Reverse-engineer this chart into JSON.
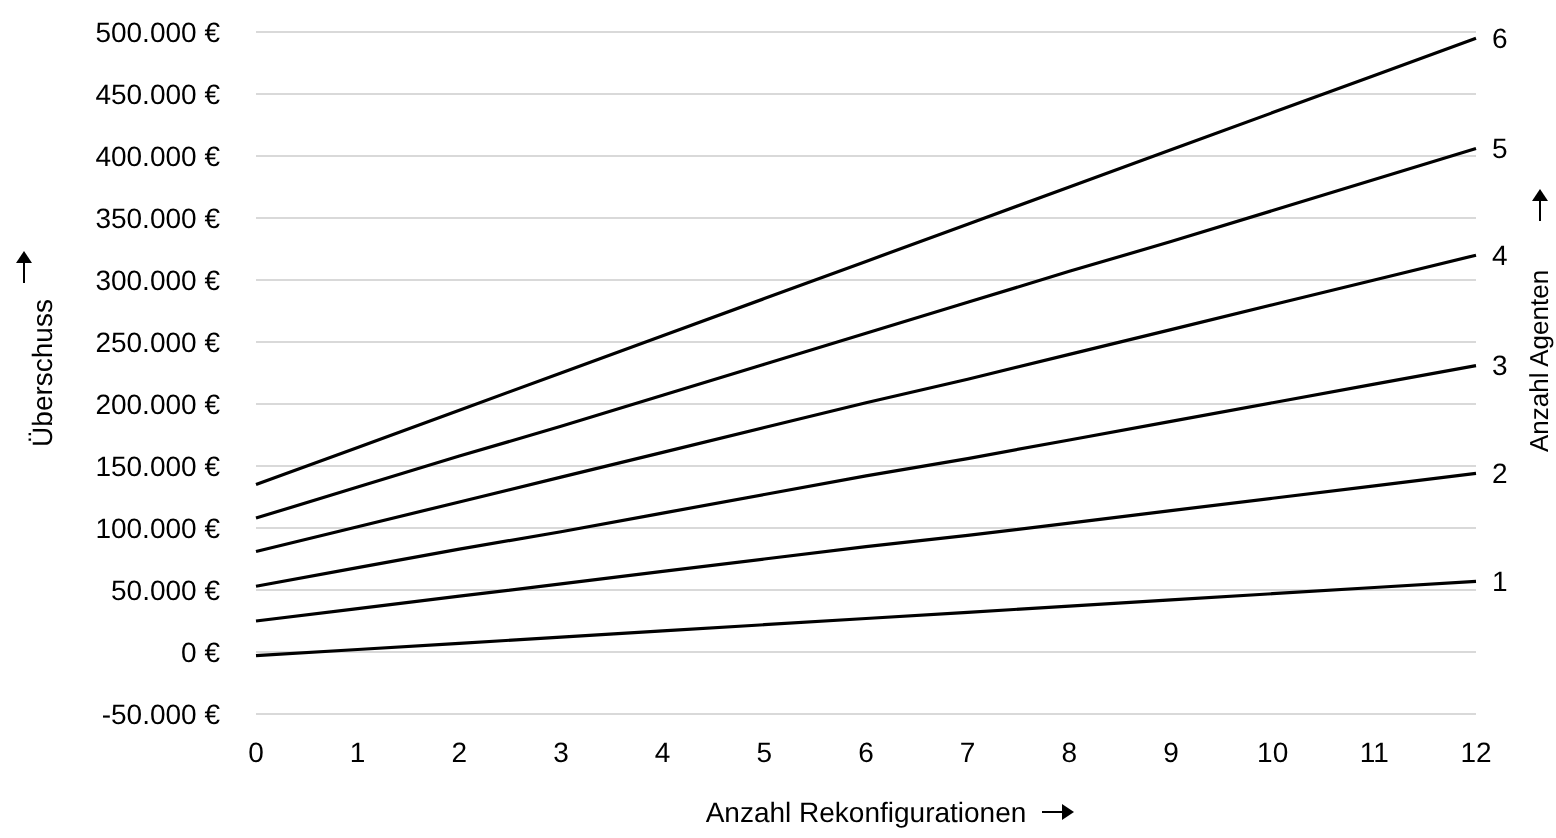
{
  "chart_data": {
    "type": "line",
    "xlabel": "Anzahl Rekonfigurationen",
    "ylabel": "Überschuss",
    "y2label": "Anzahl Agenten",
    "x": [
      0,
      1,
      2,
      3,
      4,
      5,
      6,
      7,
      8,
      9,
      10,
      11,
      12
    ],
    "series": [
      {
        "name": "1",
        "color": "#000000",
        "values": [
          -3000,
          2000,
          7000,
          12000,
          17000,
          22000,
          27000,
          32000,
          37000,
          42000,
          47000,
          52000,
          57000
        ]
      },
      {
        "name": "2",
        "color": "#000000",
        "values": [
          25000,
          35000,
          45000,
          55000,
          65000,
          75000,
          85000,
          94000,
          104000,
          114000,
          124000,
          134000,
          144000
        ]
      },
      {
        "name": "3",
        "color": "#000000",
        "values": [
          53000,
          68000,
          83000,
          97000,
          112000,
          127000,
          142000,
          156000,
          171000,
          186000,
          201000,
          216000,
          231000
        ]
      },
      {
        "name": "4",
        "color": "#000000",
        "values": [
          81000,
          101000,
          121000,
          141000,
          161000,
          181000,
          201000,
          220000,
          240000,
          260000,
          280000,
          300000,
          320000
        ]
      },
      {
        "name": "5",
        "color": "#000000",
        "values": [
          108000,
          133000,
          158000,
          182000,
          207000,
          232000,
          257000,
          282000,
          307000,
          331000,
          356000,
          381000,
          406000
        ]
      },
      {
        "name": "6",
        "color": "#000000",
        "values": [
          135000,
          165000,
          195000,
          225000,
          255000,
          285000,
          315000,
          345000,
          375000,
          405000,
          435000,
          465000,
          495000
        ]
      }
    ],
    "xlim": [
      0,
      12
    ],
    "xticks": [
      0,
      1,
      2,
      3,
      4,
      5,
      6,
      7,
      8,
      9,
      10,
      11,
      12
    ],
    "ylim": [
      -50000,
      500000
    ],
    "yticks": [
      {
        "value": -50000,
        "label": "-50.000 €"
      },
      {
        "value": 0,
        "label": "0 €"
      },
      {
        "value": 50000,
        "label": "50.000 €"
      },
      {
        "value": 100000,
        "label": "100.000 €"
      },
      {
        "value": 150000,
        "label": "150.000 €"
      },
      {
        "value": 200000,
        "label": "200.000 €"
      },
      {
        "value": 250000,
        "label": "250.000 €"
      },
      {
        "value": 300000,
        "label": "300.000 €"
      },
      {
        "value": 350000,
        "label": "350.000 €"
      },
      {
        "value": 400000,
        "label": "400.000 €"
      },
      {
        "value": 450000,
        "label": "450.000 €"
      },
      {
        "value": 500000,
        "label": "500.000 €"
      }
    ],
    "grid": "y",
    "legend": false,
    "marker": "none",
    "line_style": "solid"
  }
}
